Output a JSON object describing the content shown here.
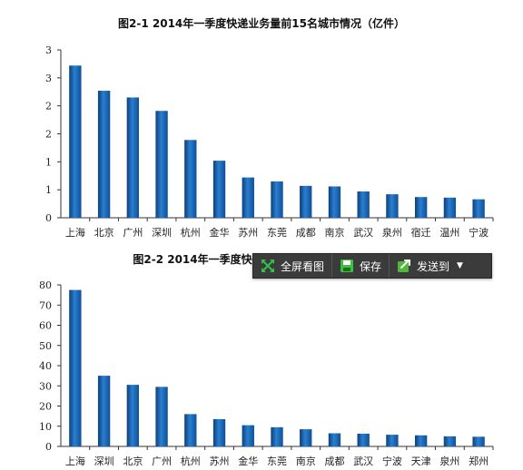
{
  "chart_data": [
    {
      "type": "bar",
      "title": "图2-1  2014年一季度快递业务量前15名城市情况（亿件）",
      "categories": [
        "上海",
        "北京",
        "广州",
        "深圳",
        "杭州",
        "金华",
        "苏州",
        "东莞",
        "成都",
        "南京",
        "武汉",
        "泉州",
        "宿迁",
        "温州",
        "宁波"
      ],
      "values": [
        2.72,
        2.27,
        2.15,
        1.91,
        1.39,
        1.02,
        0.72,
        0.65,
        0.57,
        0.56,
        0.47,
        0.42,
        0.37,
        0.36,
        0.33
      ],
      "ylim": [
        0,
        3
      ],
      "ytick_labels": [
        "0",
        "1",
        "1",
        "2",
        "2",
        "3",
        "3"
      ],
      "xlabel": "",
      "ylabel": "",
      "grid": false
    },
    {
      "type": "bar",
      "title": "图2-2  2014年一季度快递",
      "categories": [
        "上海",
        "深圳",
        "北京",
        "广州",
        "杭州",
        "苏州",
        "金华",
        "东莞",
        "南京",
        "成都",
        "武汉",
        "宁波",
        "天津",
        "泉州",
        "郑州"
      ],
      "values": [
        77.5,
        35,
        30.5,
        29.5,
        16,
        13.5,
        10.5,
        9.5,
        8.5,
        6.5,
        6.3,
        5.8,
        5.5,
        5,
        4.8
      ],
      "ylim": [
        0,
        80
      ],
      "ytick_labels": [
        "0",
        "10",
        "20",
        "30",
        "40",
        "50",
        "60",
        "70",
        "80"
      ],
      "xlabel": "",
      "ylabel": "",
      "grid": false
    }
  ],
  "toolbar": {
    "fullscreen_label": "全屏看图",
    "save_label": "保存",
    "send_label": "发送到",
    "colors": {
      "background": "#3b3b3b",
      "fullscreen_icon": "#35c04a",
      "save_icon": "#3fbf3f",
      "send_icon": "#52b83d"
    },
    "icons": {
      "fullscreen": "expand-arrows-icon",
      "save": "floppy-disk-icon",
      "send": "share-arrow-icon",
      "dropdown": "caret-down-icon"
    }
  },
  "colors": {
    "bar_dark": "#0b3f7a",
    "bar_mid": "#2a7fd0",
    "bar_light": "#1f64b0"
  }
}
